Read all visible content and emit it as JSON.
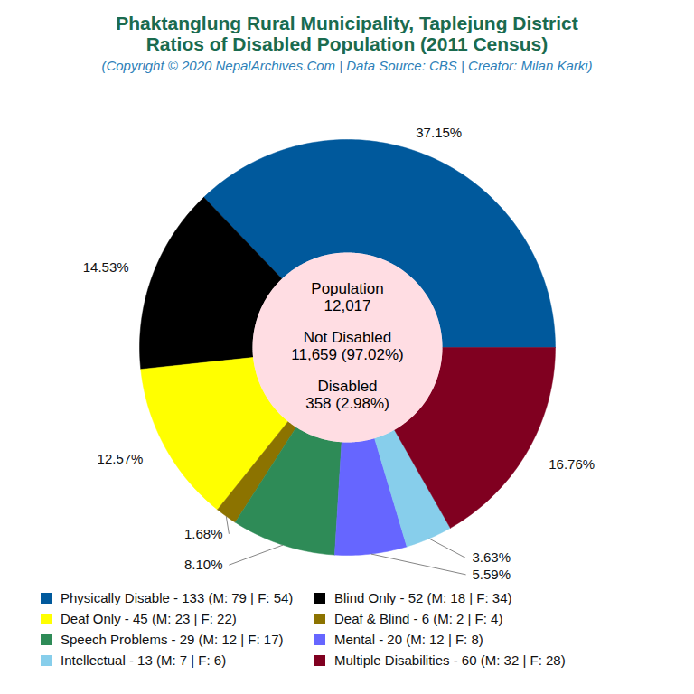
{
  "chart_data": {
    "type": "pie",
    "title": [
      "Phaktanglung Rural Municipality, Taplejung District",
      "Ratios of Disabled Population (2011 Census)"
    ],
    "subtitle": "(Copyright © 2020 NepalArchives.Com | Data Source: CBS | Creator: Milan Karki)",
    "categories": [
      "Physically Disable - 133 (M: 79 | F: 54)",
      "Blind Only - 52 (M: 18 | F: 34)",
      "Deaf Only - 45 (M: 23 | F: 22)",
      "Deaf & Blind - 6 (M: 2 | F: 4)",
      "Speech Problems - 29 (M: 12 | F: 17)",
      "Mental - 20 (M: 12 | F: 8)",
      "Intellectual - 13 (M: 7 | F: 6)",
      "Multiple Disabilities - 60 (M: 32 | F: 28)"
    ],
    "values": [
      37.15,
      14.53,
      12.57,
      1.68,
      8.1,
      5.59,
      3.63,
      16.76
    ],
    "value_labels": [
      "37.15%",
      "14.53%",
      "12.57%",
      "1.68%",
      "8.10%",
      "5.59%",
      "3.63%",
      "16.76%"
    ],
    "colors": [
      "#00599c",
      "#000000",
      "#ffff00",
      "#8c7300",
      "#2e8b57",
      "#6666ff",
      "#87ceeb",
      "#800020"
    ],
    "center_text": [
      "Population",
      "12,017",
      "Not Disabled",
      "11,659 (97.02%)",
      "Disabled",
      "358 (2.98%)"
    ],
    "data_labels": true,
    "legend": "bottom"
  }
}
